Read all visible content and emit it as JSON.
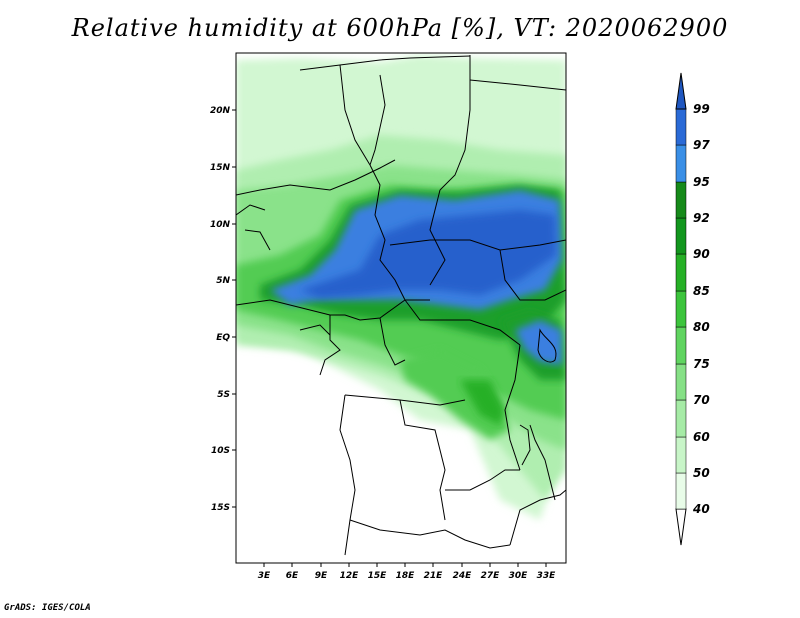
{
  "title": "Relative humidity at 600hPa [%], VT: 2020062900",
  "credit": "GrADS: IGES/COLA",
  "map": {
    "lon_range": [
      0,
      35
    ],
    "lat_range": [
      -20,
      25
    ],
    "x_ticks": [
      "3E",
      "6E",
      "9E",
      "12E",
      "15E",
      "18E",
      "21E",
      "24E",
      "27E",
      "30E",
      "33E"
    ],
    "y_ticks": [
      "20N",
      "15N",
      "10N",
      "5N",
      "EQ",
      "5S",
      "10S",
      "15S"
    ]
  },
  "colorbar": {
    "levels": [
      "40",
      "50",
      "60",
      "70",
      "75",
      "80",
      "85",
      "90",
      "92",
      "95",
      "97",
      "99"
    ],
    "colors": [
      "#ffffff",
      "#e8fce8",
      "#c8f5c8",
      "#a6eba6",
      "#86e086",
      "#60d460",
      "#3cc43c",
      "#26b026",
      "#12961e",
      "#3a8fe6",
      "#2f6fd9",
      "#1f4fb8",
      "#2060c8"
    ]
  }
}
